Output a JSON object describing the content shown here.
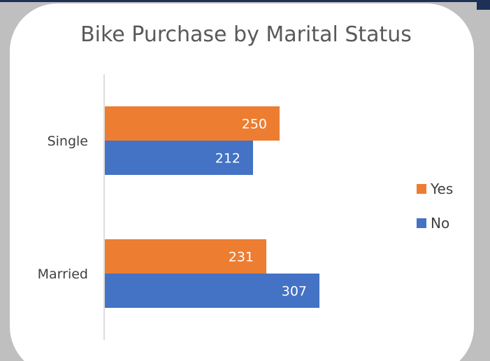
{
  "chart_data": {
    "type": "bar",
    "orientation": "horizontal",
    "title": "Bike Purchase by Marital Status",
    "categories": [
      "Single",
      "Married"
    ],
    "series": [
      {
        "name": "Yes",
        "values": [
          250,
          231
        ],
        "color": "#ED7D31"
      },
      {
        "name": "No",
        "values": [
          212,
          307
        ],
        "color": "#4472C4"
      }
    ],
    "xlim": [
      0,
      500
    ],
    "grid": false,
    "legend": "right",
    "data_labels": true
  }
}
